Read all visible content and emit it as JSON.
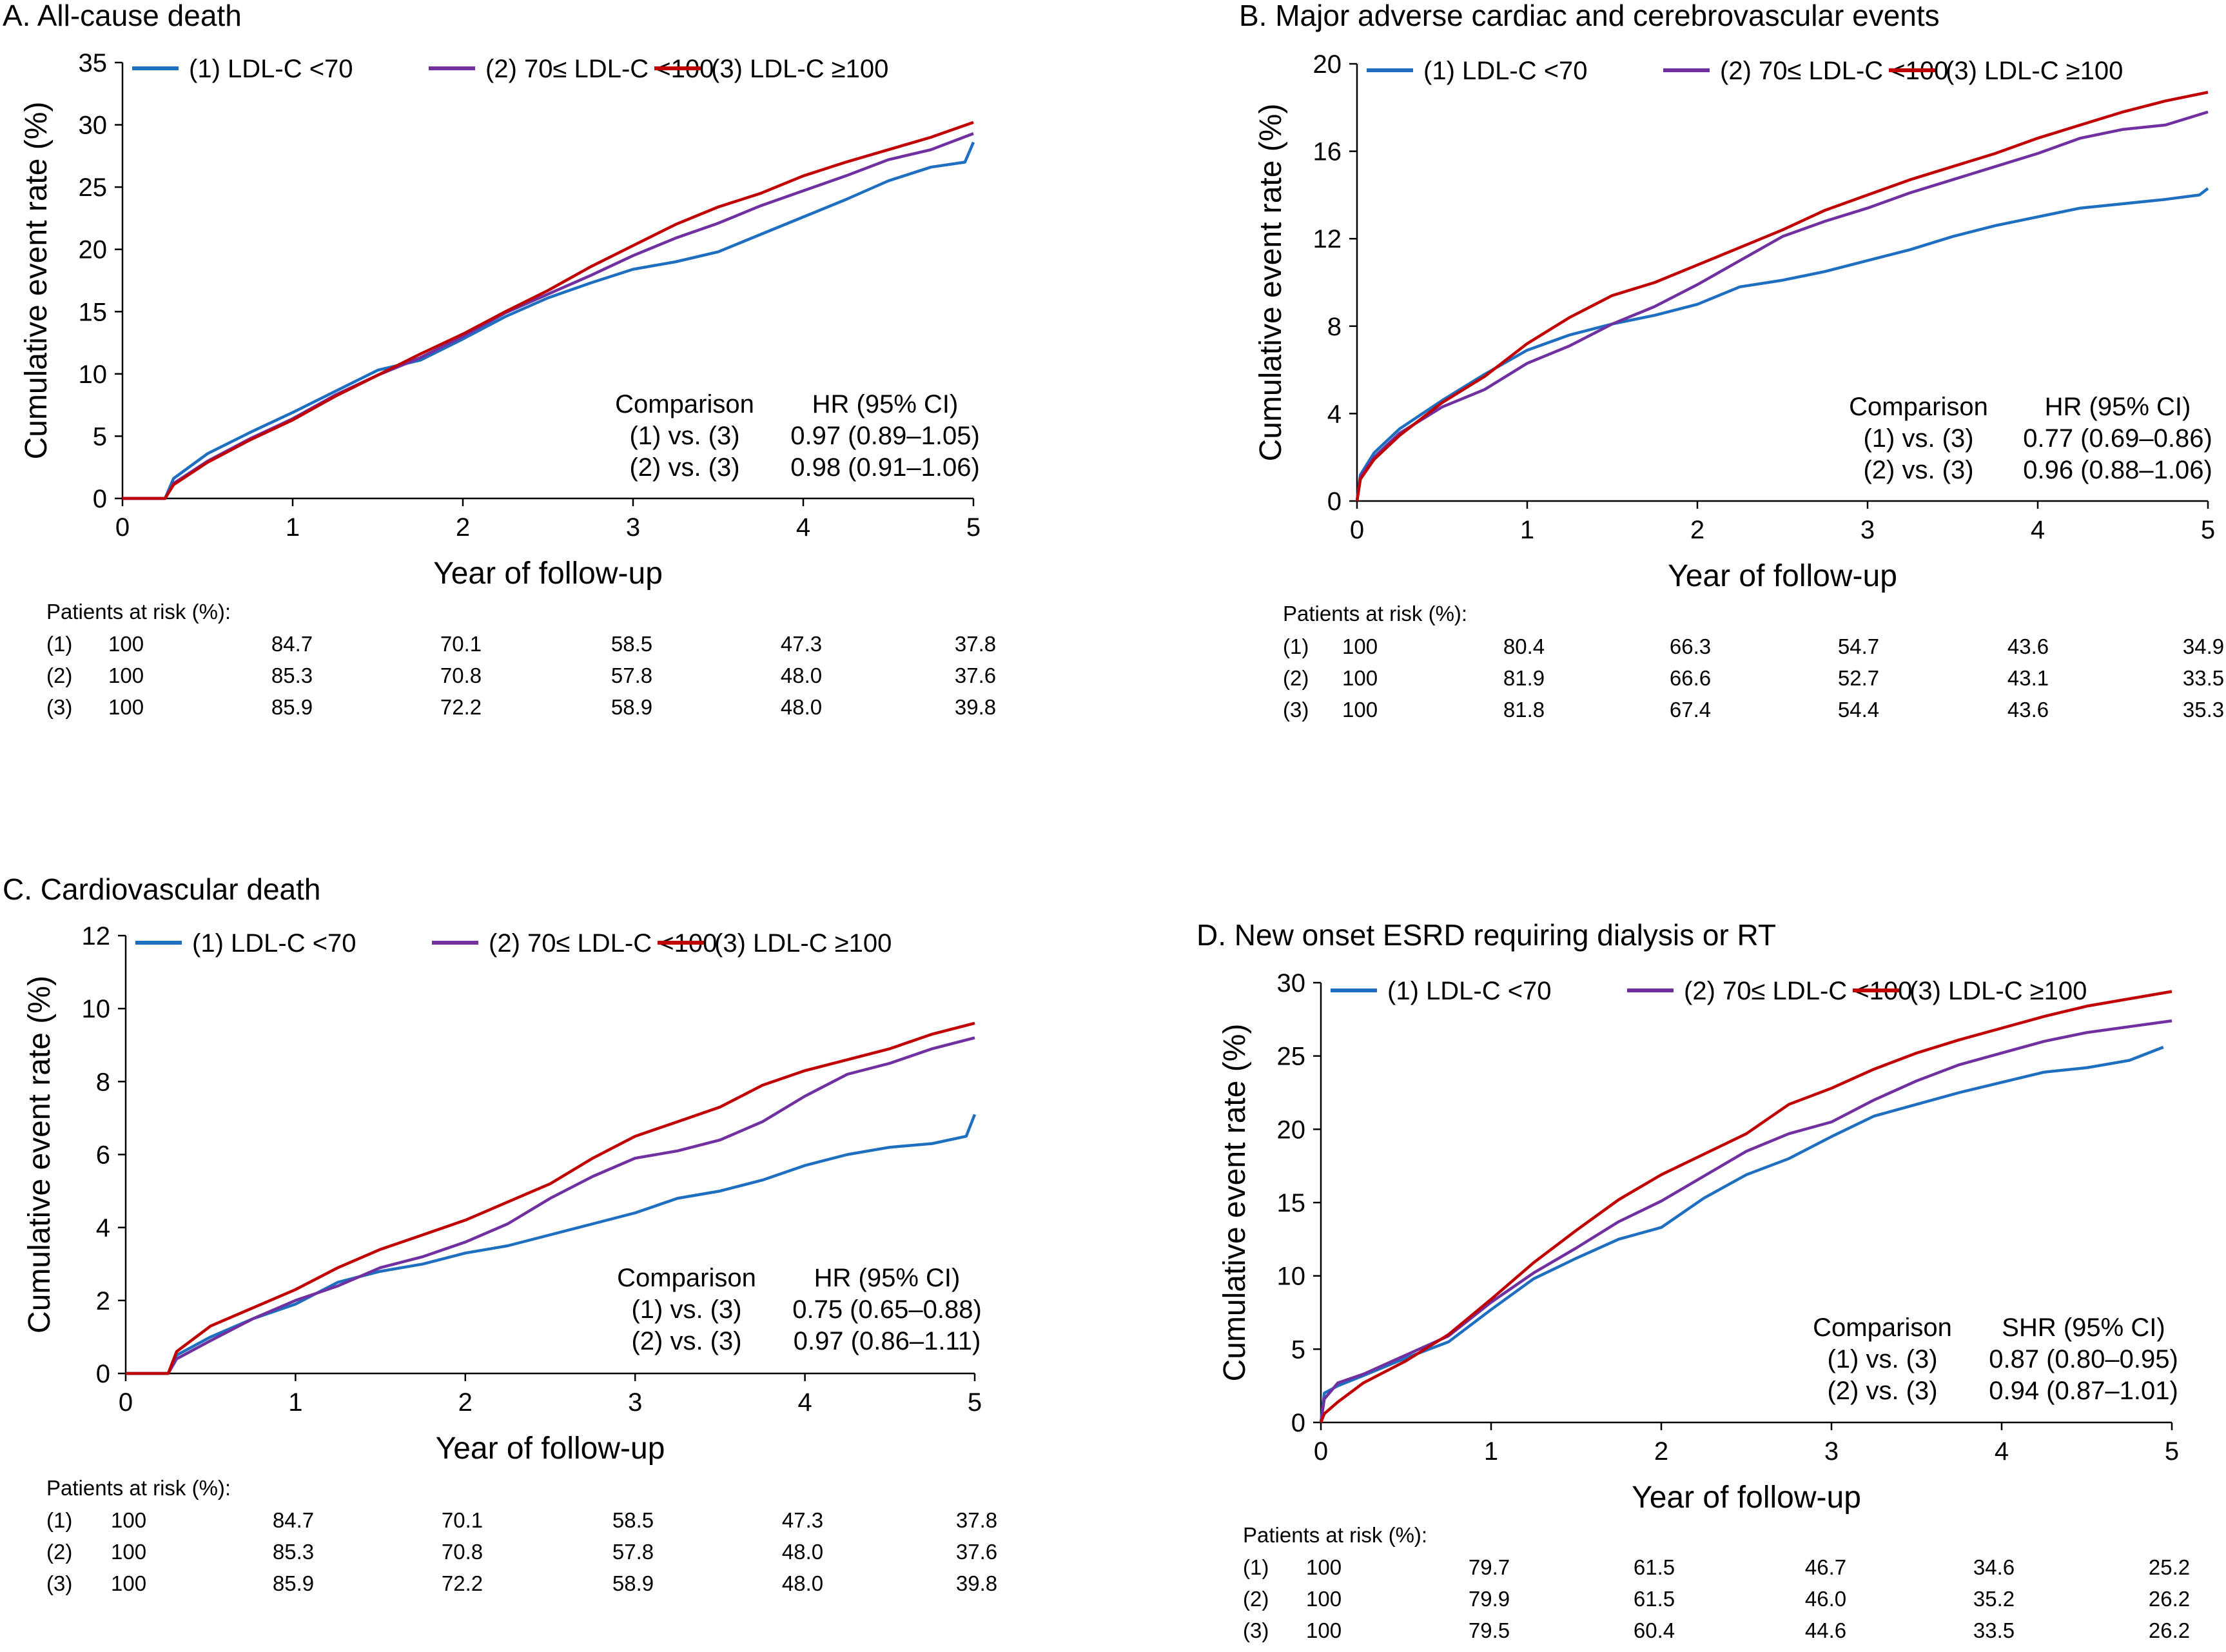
{
  "colors": {
    "g1": "#1f6fc1",
    "g2": "#7030a0",
    "g3": "#c00000",
    "axis": "#000000"
  },
  "legend_labels": [
    "(1) LDL-C <70",
    "(2) 70≤ LDL-C <100",
    "(3) LDL-C ≥100"
  ],
  "chart_data": [
    {
      "type": "line",
      "title": "A. All-cause death",
      "xlabel": "Year of follow-up",
      "ylabel": "Cumulative event rate (%)",
      "xlim": [
        0,
        5
      ],
      "ylim": [
        0,
        35
      ],
      "xticks": [
        0,
        1,
        2,
        3,
        4,
        5
      ],
      "yticks": [
        0,
        5,
        10,
        15,
        20,
        25,
        30,
        35
      ],
      "legend_position": "top-left",
      "series": [
        {
          "name": "(1) LDL-C <70",
          "color": "#1f6fc1",
          "x": [
            0,
            0.25,
            0.3,
            0.5,
            0.75,
            1,
            1.25,
            1.5,
            1.75,
            2,
            2.25,
            2.5,
            2.75,
            3,
            3.25,
            3.5,
            3.75,
            4,
            4.25,
            4.5,
            4.75,
            4.95,
            5
          ],
          "y": [
            0,
            0,
            1.6,
            3.6,
            5.3,
            6.9,
            8.6,
            10.3,
            11.1,
            12.8,
            14.6,
            16.1,
            17.3,
            18.4,
            19.0,
            19.8,
            21.2,
            22.6,
            24.0,
            25.5,
            26.6,
            27.0,
            28.6
          ]
        },
        {
          "name": "(2) 70≤ LDL-C <100",
          "color": "#7030a0",
          "x": [
            0,
            0.25,
            0.3,
            0.5,
            0.75,
            1,
            1.25,
            1.5,
            1.75,
            2,
            2.25,
            2.5,
            2.75,
            3,
            3.25,
            3.5,
            3.75,
            4,
            4.25,
            4.5,
            4.75,
            5
          ],
          "y": [
            0,
            0,
            1.2,
            3.0,
            4.8,
            6.4,
            8.3,
            9.9,
            11.3,
            13.0,
            14.9,
            16.4,
            17.9,
            19.5,
            20.9,
            22.1,
            23.5,
            24.7,
            25.9,
            27.2,
            28.0,
            29.3
          ]
        },
        {
          "name": "(3) LDL-C ≥100",
          "color": "#c00000",
          "x": [
            0,
            0.25,
            0.3,
            0.5,
            0.75,
            1,
            1.25,
            1.5,
            1.75,
            2,
            2.25,
            2.5,
            2.75,
            3,
            3.25,
            3.5,
            3.75,
            4,
            4.25,
            4.5,
            4.75,
            5
          ],
          "y": [
            0,
            0,
            1.1,
            2.9,
            4.7,
            6.3,
            8.2,
            9.9,
            11.6,
            13.2,
            15.0,
            16.7,
            18.6,
            20.3,
            22.0,
            23.4,
            24.5,
            25.9,
            27.0,
            28.0,
            29.0,
            30.2
          ]
        }
      ],
      "comparison": {
        "header": [
          "Comparison",
          "HR (95% CI)"
        ],
        "rows": [
          [
            "(1) vs. (3)",
            "0.97 (0.89–1.05)"
          ],
          [
            "(2) vs. (3)",
            "0.98 (0.91–1.06)"
          ]
        ]
      },
      "at_risk": {
        "title": "Patients at risk (%):",
        "rows": [
          [
            "(1)",
            "100",
            "84.7",
            "70.1",
            "58.5",
            "47.3",
            "37.8"
          ],
          [
            "(2)",
            "100",
            "85.3",
            "70.8",
            "57.8",
            "48.0",
            "37.6"
          ],
          [
            "(3)",
            "100",
            "85.9",
            "72.2",
            "58.9",
            "48.0",
            "39.8"
          ]
        ]
      }
    },
    {
      "type": "line",
      "title": "B. Major adverse cardiac and cerebrovascular events",
      "xlabel": "Year of follow-up",
      "ylabel": "Cumulative event rate (%)",
      "xlim": [
        0,
        5
      ],
      "ylim": [
        0,
        20
      ],
      "xticks": [
        0,
        1,
        2,
        3,
        4,
        5
      ],
      "yticks": [
        0,
        4,
        8,
        12,
        16,
        20
      ],
      "legend_position": "top-left",
      "series": [
        {
          "name": "(1) LDL-C <70",
          "color": "#1f6fc1",
          "x": [
            0,
            0.02,
            0.1,
            0.25,
            0.5,
            0.75,
            1,
            1.25,
            1.5,
            1.75,
            2,
            2.25,
            2.5,
            2.75,
            3,
            3.25,
            3.5,
            3.75,
            4,
            4.25,
            4.5,
            4.75,
            4.95,
            5
          ],
          "y": [
            0,
            1.2,
            2.2,
            3.3,
            4.6,
            5.8,
            6.9,
            7.6,
            8.1,
            8.5,
            9.0,
            9.8,
            10.1,
            10.5,
            11.0,
            11.5,
            12.1,
            12.6,
            13.0,
            13.4,
            13.6,
            13.8,
            14.0,
            14.3
          ]
        },
        {
          "name": "(2) 70≤ LDL-C <100",
          "color": "#7030a0",
          "x": [
            0,
            0.02,
            0.1,
            0.25,
            0.5,
            0.75,
            1,
            1.25,
            1.5,
            1.75,
            2,
            2.25,
            2.5,
            2.75,
            3,
            3.25,
            3.5,
            3.75,
            4,
            4.25,
            4.5,
            4.75,
            5
          ],
          "y": [
            0,
            1.1,
            2.0,
            3.1,
            4.3,
            5.1,
            6.3,
            7.1,
            8.1,
            8.9,
            9.9,
            11.0,
            12.1,
            12.8,
            13.4,
            14.1,
            14.7,
            15.3,
            15.9,
            16.6,
            17.0,
            17.2,
            17.8
          ]
        },
        {
          "name": "(3) LDL-C ≥100",
          "color": "#c00000",
          "x": [
            0,
            0.02,
            0.1,
            0.25,
            0.5,
            0.75,
            1,
            1.25,
            1.5,
            1.75,
            2,
            2.25,
            2.5,
            2.75,
            3,
            3.25,
            3.5,
            3.75,
            4,
            4.25,
            4.5,
            4.75,
            5
          ],
          "y": [
            0,
            1.0,
            1.9,
            3.0,
            4.5,
            5.7,
            7.2,
            8.4,
            9.4,
            10.0,
            10.8,
            11.6,
            12.4,
            13.3,
            14.0,
            14.7,
            15.3,
            15.9,
            16.6,
            17.2,
            17.8,
            18.3,
            18.7
          ]
        }
      ],
      "comparison": {
        "header": [
          "Comparison",
          "HR (95% CI)"
        ],
        "rows": [
          [
            "(1) vs. (3)",
            "0.77 (0.69–0.86)"
          ],
          [
            "(2) vs. (3)",
            "0.96 (0.88–1.06)"
          ]
        ]
      },
      "at_risk": {
        "title": "Patients at risk (%):",
        "rows": [
          [
            "(1)",
            "100",
            "80.4",
            "66.3",
            "54.7",
            "43.6",
            "34.9"
          ],
          [
            "(2)",
            "100",
            "81.9",
            "66.6",
            "52.7",
            "43.1",
            "33.5"
          ],
          [
            "(3)",
            "100",
            "81.8",
            "67.4",
            "54.4",
            "43.6",
            "35.3"
          ]
        ]
      }
    },
    {
      "type": "line",
      "title": "C. Cardiovascular death",
      "xlabel": "Year of follow-up",
      "ylabel": "Cumulative event rate (%)",
      "xlim": [
        0,
        5
      ],
      "ylim": [
        0,
        12
      ],
      "xticks": [
        0,
        1,
        2,
        3,
        4,
        5
      ],
      "yticks": [
        0,
        2,
        4,
        6,
        8,
        10,
        12
      ],
      "legend_position": "top-left",
      "series": [
        {
          "name": "(1) LDL-C <70",
          "color": "#1f6fc1",
          "x": [
            0,
            0.25,
            0.3,
            0.5,
            0.75,
            1,
            1.25,
            1.5,
            1.75,
            2,
            2.25,
            2.5,
            2.75,
            3,
            3.25,
            3.5,
            3.75,
            4,
            4.25,
            4.5,
            4.75,
            4.95,
            5
          ],
          "y": [
            0,
            0,
            0.5,
            1.0,
            1.5,
            1.9,
            2.5,
            2.8,
            3.0,
            3.3,
            3.5,
            3.8,
            4.1,
            4.4,
            4.8,
            5.0,
            5.3,
            5.7,
            6.0,
            6.2,
            6.3,
            6.5,
            7.1
          ]
        },
        {
          "name": "(2) 70≤ LDL-C <100",
          "color": "#7030a0",
          "x": [
            0,
            0.25,
            0.3,
            0.5,
            0.75,
            1,
            1.25,
            1.5,
            1.75,
            2,
            2.25,
            2.5,
            2.75,
            3,
            3.25,
            3.5,
            3.75,
            4,
            4.25,
            4.5,
            4.75,
            5
          ],
          "y": [
            0,
            0,
            0.4,
            0.9,
            1.5,
            2.0,
            2.4,
            2.9,
            3.2,
            3.6,
            4.1,
            4.8,
            5.4,
            5.9,
            6.1,
            6.4,
            6.9,
            7.6,
            8.2,
            8.5,
            8.9,
            9.2
          ]
        },
        {
          "name": "(3) LDL-C ≥100",
          "color": "#c00000",
          "x": [
            0,
            0.25,
            0.3,
            0.5,
            0.75,
            1,
            1.25,
            1.5,
            1.75,
            2,
            2.25,
            2.5,
            2.75,
            3,
            3.25,
            3.5,
            3.75,
            4,
            4.25,
            4.5,
            4.75,
            5
          ],
          "y": [
            0,
            0,
            0.6,
            1.3,
            1.8,
            2.3,
            2.9,
            3.4,
            3.8,
            4.2,
            4.7,
            5.2,
            5.9,
            6.5,
            6.9,
            7.3,
            7.9,
            8.3,
            8.6,
            8.9,
            9.3,
            9.6
          ]
        }
      ],
      "comparison": {
        "header": [
          "Comparison",
          "HR (95% CI)"
        ],
        "rows": [
          [
            "(1) vs. (3)",
            "0.75 (0.65–0.88)"
          ],
          [
            "(2) vs. (3)",
            "0.97 (0.86–1.11)"
          ]
        ]
      },
      "at_risk": {
        "title": "Patients at risk (%):",
        "rows": [
          [
            "(1)",
            "100",
            "84.7",
            "70.1",
            "58.5",
            "47.3",
            "37.8"
          ],
          [
            "(2)",
            "100",
            "85.3",
            "70.8",
            "57.8",
            "48.0",
            "37.6"
          ],
          [
            "(3)",
            "100",
            "85.9",
            "72.2",
            "58.9",
            "48.0",
            "39.8"
          ]
        ]
      }
    },
    {
      "type": "line",
      "title": "D. New onset ESRD requiring dialysis or RT",
      "xlabel": "Year of follow-up",
      "ylabel": "Cumulative event rate (%)",
      "xlim": [
        0,
        5
      ],
      "ylim": [
        0,
        30
      ],
      "xticks": [
        0,
        1,
        2,
        3,
        4,
        5
      ],
      "yticks": [
        0,
        5,
        10,
        15,
        20,
        25,
        30
      ],
      "legend_position": "top-left",
      "series": [
        {
          "name": "(1) LDL-C <70",
          "color": "#1f6fc1",
          "x": [
            0,
            0.02,
            0.1,
            0.25,
            0.5,
            0.75,
            1,
            1.25,
            1.5,
            1.75,
            2,
            2.25,
            2.5,
            2.75,
            3,
            3.25,
            3.5,
            3.75,
            4,
            4.25,
            4.5,
            4.75,
            4.95
          ],
          "y": [
            0,
            2.0,
            2.5,
            3.2,
            4.4,
            5.5,
            7.7,
            9.8,
            11.2,
            12.5,
            13.3,
            15.3,
            16.9,
            18.0,
            19.5,
            20.9,
            21.7,
            22.5,
            23.2,
            23.9,
            24.2,
            24.7,
            25.6
          ]
        },
        {
          "name": "(2) 70≤ LDL-C <100",
          "color": "#7030a0",
          "x": [
            0,
            0.02,
            0.1,
            0.25,
            0.5,
            0.75,
            1,
            1.25,
            1.5,
            1.75,
            2,
            2.25,
            2.5,
            2.75,
            3,
            3.25,
            3.5,
            3.75,
            4,
            4.25,
            4.5,
            4.75,
            5
          ],
          "y": [
            0,
            1.6,
            2.7,
            3.3,
            4.6,
            5.9,
            8.2,
            10.2,
            11.9,
            13.7,
            15.1,
            16.8,
            18.5,
            19.7,
            20.5,
            22.0,
            23.3,
            24.4,
            25.2,
            26.0,
            26.6,
            27.0,
            27.4
          ]
        },
        {
          "name": "(3) LDL-C ≥100",
          "color": "#c00000",
          "x": [
            0,
            0.02,
            0.1,
            0.25,
            0.5,
            0.75,
            1,
            1.25,
            1.5,
            1.75,
            2,
            2.25,
            2.5,
            2.75,
            3,
            3.25,
            3.5,
            3.75,
            4,
            4.25,
            4.5,
            4.75,
            5
          ],
          "y": [
            0,
            0.6,
            1.4,
            2.7,
            4.2,
            6.0,
            8.4,
            10.9,
            13.1,
            15.2,
            16.9,
            18.3,
            19.7,
            21.7,
            22.8,
            24.1,
            25.2,
            26.1,
            26.9,
            27.7,
            28.4,
            28.9,
            29.4
          ]
        }
      ],
      "comparison": {
        "header": [
          "Comparison",
          "SHR (95% CI)"
        ],
        "rows": [
          [
            "(1) vs. (3)",
            "0.87 (0.80–0.95)"
          ],
          [
            "(2) vs. (3)",
            "0.94 (0.87–1.01)"
          ]
        ]
      },
      "at_risk": {
        "title": "Patients at risk (%):",
        "rows": [
          [
            "(1)",
            "100",
            "79.7",
            "61.5",
            "46.7",
            "34.6",
            "25.2"
          ],
          [
            "(2)",
            "100",
            "79.9",
            "61.5",
            "46.0",
            "35.2",
            "26.2"
          ],
          [
            "(3)",
            "100",
            "79.5",
            "60.4",
            "44.6",
            "33.5",
            "26.2"
          ]
        ]
      }
    }
  ]
}
